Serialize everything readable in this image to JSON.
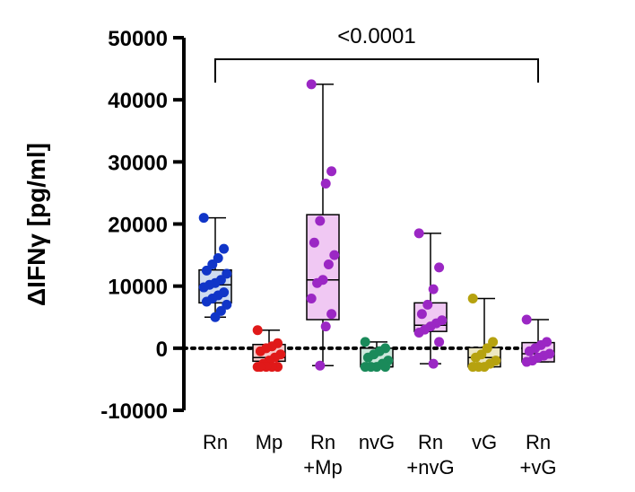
{
  "chart_data": {
    "type": "box",
    "ylabel": "ΔIFNγ [pg/ml]",
    "ylim": [
      -10000,
      50000
    ],
    "yticks": [
      "50000",
      "40000",
      "30000",
      "20000",
      "10000",
      "0",
      "-10000"
    ],
    "reference_line": 0,
    "annotation": "<0.0001",
    "comparison": [
      "Rn",
      "Rn +vG"
    ],
    "groups": [
      {
        "label_lines": [
          "Rn"
        ],
        "color": "#1035c8",
        "fill": "#cfdcf0",
        "min": 5000,
        "q1": 7300,
        "median": 10200,
        "q3": 12600,
        "max": 21000,
        "points": [
          21000,
          16000,
          14500,
          13500,
          12500,
          12000,
          11000,
          10500,
          10200,
          9800,
          9000,
          8500,
          8000,
          7500,
          7000,
          6000,
          5000
        ]
      },
      {
        "label_lines": [
          "Mp"
        ],
        "color": "#e01919",
        "fill": "#f6caca",
        "min": -3000,
        "q1": -2100,
        "median": -1500,
        "q3": 600,
        "max": 2900,
        "points": [
          2900,
          800,
          300,
          0,
          -500,
          -1000,
          -1500,
          -2000,
          -2500,
          -3000,
          -3000,
          -3000,
          -3000,
          -3000
        ]
      },
      {
        "label_lines": [
          "Rn",
          "+Mp"
        ],
        "color": "#9b27c4",
        "fill": "#f0c8f3",
        "min": -2800,
        "q1": 4600,
        "median": 11000,
        "q3": 21500,
        "max": 42500,
        "points": [
          42500,
          28500,
          26500,
          20500,
          17000,
          15000,
          13500,
          11000,
          10500,
          8000,
          5500,
          3500,
          -2800
        ]
      },
      {
        "label_lines": [
          "nvG"
        ],
        "color": "#1a8a5a",
        "fill": "#cde8dc",
        "min": -3000,
        "q1": -3000,
        "median": -3000,
        "q3": 0,
        "max": 1000,
        "points": [
          1000,
          0,
          -500,
          -1000,
          -1500,
          -2000,
          -2500,
          -3000,
          -3000,
          -3000,
          -3000
        ]
      },
      {
        "label_lines": [
          "Rn",
          "+nvG"
        ],
        "color": "#9b27c4",
        "fill": "#f0c8f3",
        "min": -2500,
        "q1": 2700,
        "median": 3700,
        "q3": 7300,
        "max": 18500,
        "points": [
          18500,
          13000,
          9500,
          7000,
          5500,
          4500,
          4000,
          3500,
          3000,
          2500,
          1000,
          -2500
        ]
      },
      {
        "label_lines": [
          "vG"
        ],
        "color": "#b6a20f",
        "fill": "#ede7c1",
        "min": -3000,
        "q1": -3000,
        "median": -1500,
        "q3": 100,
        "max": 8000,
        "points": [
          8000,
          1000,
          0,
          -1000,
          -1500,
          -2000,
          -2500,
          -3000,
          -3000,
          -3000
        ]
      },
      {
        "label_lines": [
          "Rn",
          "+vG"
        ],
        "color": "#9b27c4",
        "fill": "#f0c8f3",
        "min": -2200,
        "q1": -2200,
        "median": -900,
        "q3": 900,
        "max": 4600,
        "points": [
          4600,
          1000,
          500,
          0,
          -500,
          -900,
          -1200,
          -1500,
          -2000,
          -2200
        ]
      }
    ]
  }
}
